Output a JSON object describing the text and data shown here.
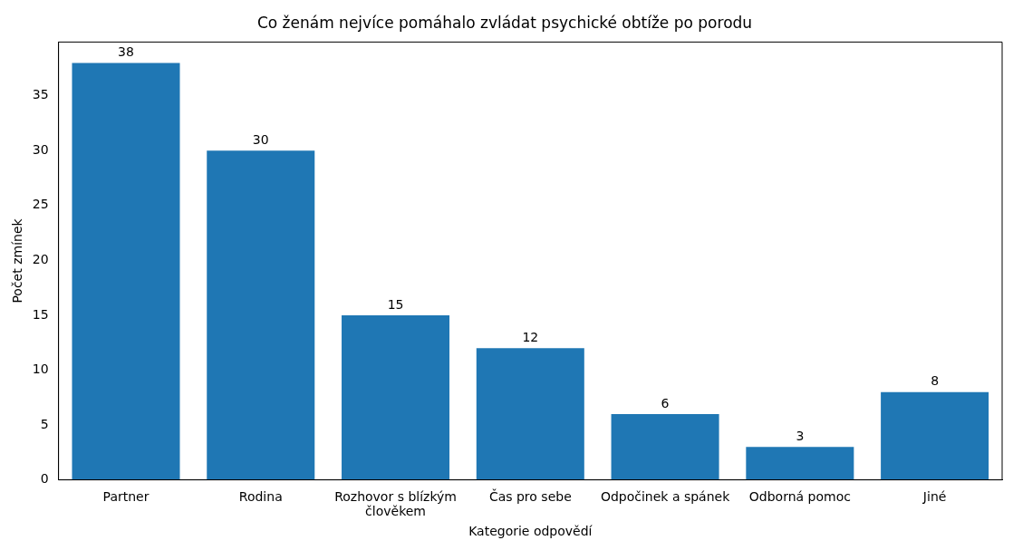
{
  "chart_data": {
    "type": "bar",
    "title": "Co ženám nejvíce pomáhalo zvládat psychické obtíže po porodu",
    "xlabel": "Kategorie odpovědí",
    "ylabel": "Počet zmínek",
    "categories": [
      "Partner",
      "Rodina",
      "Rozhovor s blízkým\nčlověkem",
      "Čas pro sebe",
      "Odpočinek a spánek",
      "Odborná pomoc",
      "Jiné"
    ],
    "values": [
      38,
      30,
      15,
      12,
      6,
      3,
      8
    ],
    "color": "#1f77b4",
    "ylim": [
      0,
      39.9
    ],
    "yticks": [
      0,
      5,
      10,
      15,
      20,
      25,
      30,
      35
    ],
    "grid": false,
    "legend": false,
    "data_labels": true
  }
}
